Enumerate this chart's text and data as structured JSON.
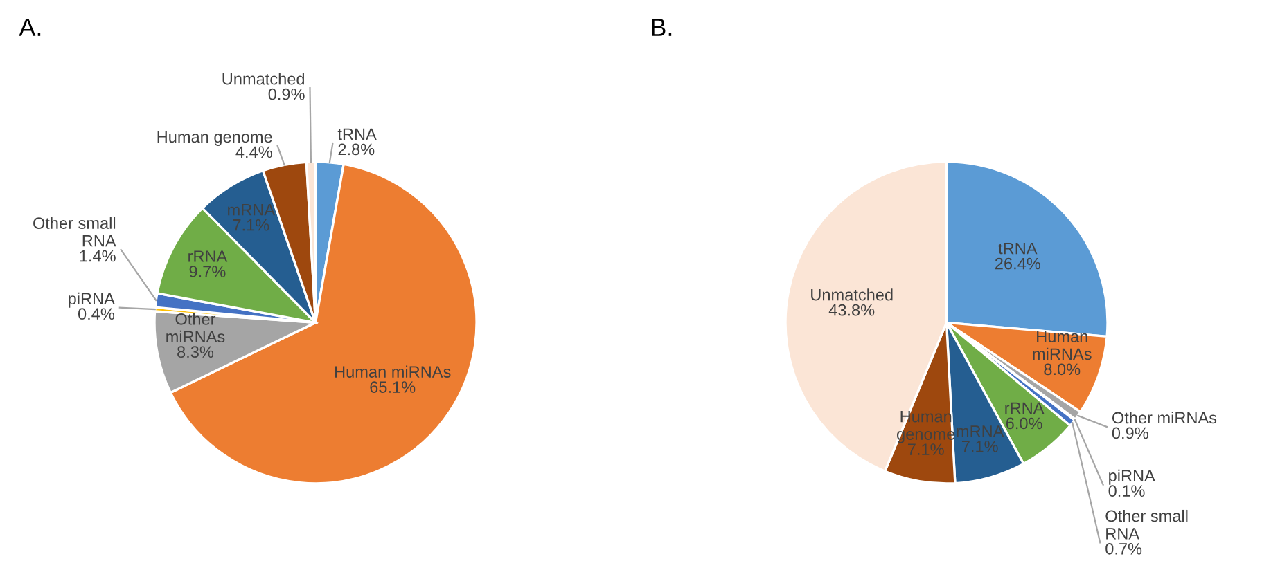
{
  "chart_data": [
    {
      "type": "pie",
      "title": "A.",
      "categories": [
        "tRNA",
        "Human miRNAs",
        "Other miRNAs",
        "piRNA",
        "Other small RNA",
        "rRNA",
        "mRNA",
        "Human genome",
        "Unmatched"
      ],
      "values": [
        2.8,
        65.1,
        8.3,
        0.4,
        1.4,
        9.7,
        7.1,
        4.4,
        0.9
      ],
      "value_labels": [
        "2.8%",
        "65.1%",
        "8.3%",
        "0.4%",
        "1.4%",
        "9.7%",
        "7.1%",
        "4.4%",
        "0.9%"
      ],
      "colors": [
        "#5b9bd5",
        "#ed7d31",
        "#a5a5a5",
        "#ffc000",
        "#4472c4",
        "#70ad47",
        "#255e91",
        "#9e480e",
        "#fbe5d6"
      ]
    },
    {
      "type": "pie",
      "title": "B.",
      "categories": [
        "tRNA",
        "Human miRNAs",
        "Other miRNAs",
        "piRNA",
        "Other small RNA",
        "rRNA",
        "mRNA",
        "Human genome",
        "Unmatched"
      ],
      "values": [
        26.4,
        8.0,
        0.9,
        0.1,
        0.7,
        6.0,
        7.1,
        7.1,
        43.8
      ],
      "value_labels": [
        "26.4%",
        "8.0%",
        "0.9%",
        "0.1%",
        "0.7%",
        "6.0%",
        "7.1%",
        "7.1%",
        "43.8%"
      ],
      "colors": [
        "#5b9bd5",
        "#ed7d31",
        "#a5a5a5",
        "#ffc000",
        "#4472c4",
        "#70ad47",
        "#255e91",
        "#9e480e",
        "#fbe5d6"
      ]
    }
  ]
}
